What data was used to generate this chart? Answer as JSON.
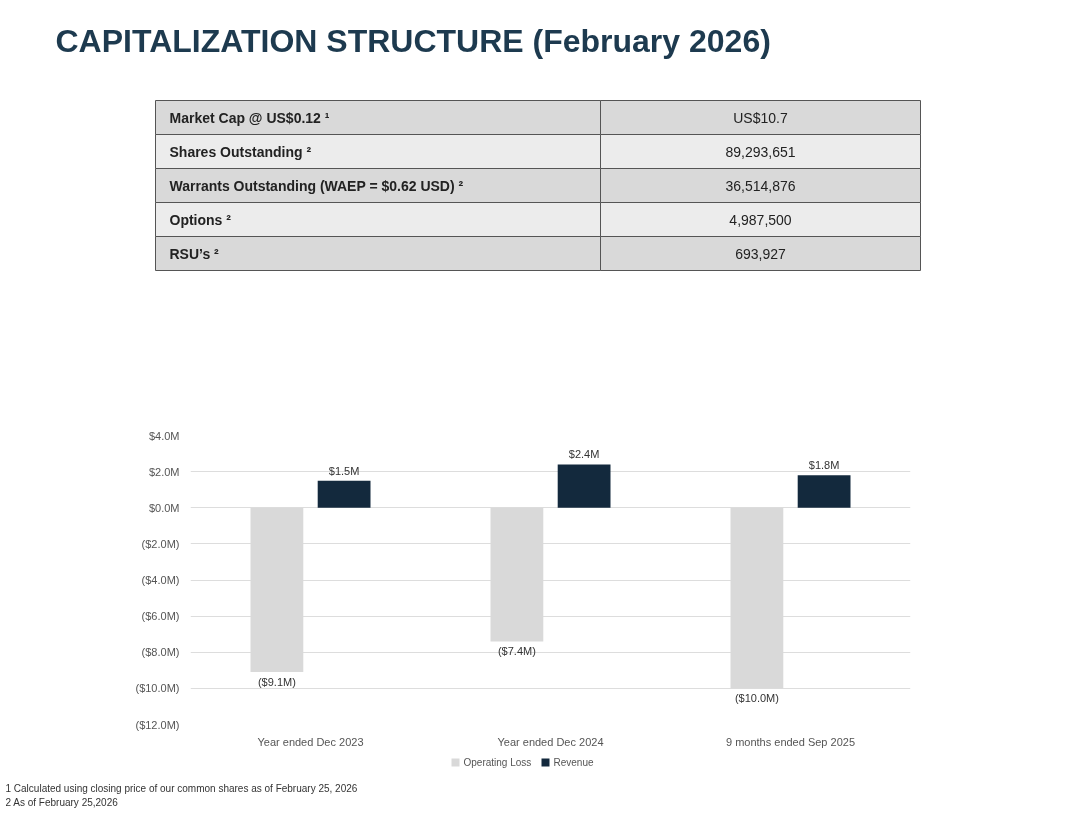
{
  "chart_data": [
    {
      "type": "other",
      "title": "CAPITALIZATION STRUCTURE (February 2026)",
      "annotations": [
        "Market Cap @ US$0.12 ¹",
        "US$10.7",
        "Shares Outstanding ²",
        "89,293,651",
        "Warrants Outstanding (WAEP = $0.62 USD) ²",
        "36,514,876",
        "Options ²",
        "4,987,500",
        "RSU’s ²",
        "693,927"
      ]
    },
    {
      "type": "bar",
      "categories": [
        "Year ended Dec 2023",
        "Year ended Dec 2024",
        "9 months ended Sep 2025"
      ],
      "series": [
        {
          "name": "Operating Loss",
          "color": "#d9d9d9",
          "values": [
            -9.1,
            -7.4,
            -10.0
          ],
          "value_labels": [
            "($9.1M)",
            "($7.4M)",
            "($10.0M)"
          ]
        },
        {
          "name": "Revenue",
          "color": "#13293d",
          "values": [
            1.5,
            2.4,
            1.8
          ],
          "value_labels": [
            "$1.5M",
            "$2.4M",
            "$1.8M"
          ]
        }
      ],
      "ylim": [
        -12,
        4
      ],
      "yticks": [
        {
          "value": 4,
          "label": "$4.0M"
        },
        {
          "value": 2,
          "label": "$2.0M"
        },
        {
          "value": 0,
          "label": "$0.0M"
        },
        {
          "value": -2,
          "label": "($2.0M)"
        },
        {
          "value": -4,
          "label": "($4.0M)"
        },
        {
          "value": -6,
          "label": "($6.0M)"
        },
        {
          "value": -8,
          "label": "($8.0M)"
        },
        {
          "value": -10,
          "label": "($10.0M)"
        },
        {
          "value": -12,
          "label": "($12.0M)"
        }
      ],
      "grid": "y",
      "legend": "bottom",
      "annotations": [
        "1 Calculated using closing price of our common shares as of February 25, 2026",
        "2 As of February 25,2026"
      ]
    }
  ]
}
